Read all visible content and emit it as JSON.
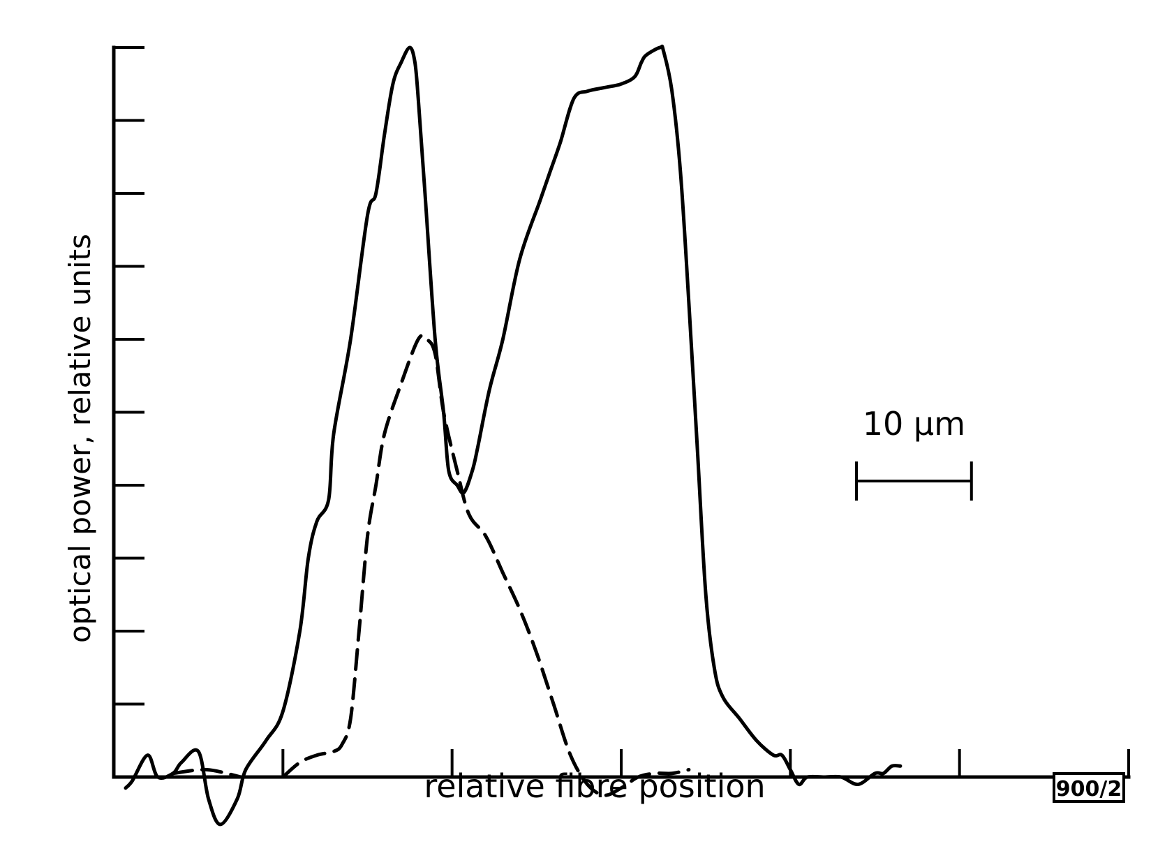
{
  "chart_data": {
    "type": "line",
    "title": "",
    "xlabel": "relative fibre position",
    "ylabel": "optical power, relative units",
    "x_tick_labels": [],
    "y_tick_labels": [],
    "xlim": [
      0,
      60
    ],
    "ylim": [
      -1,
      10
    ],
    "grid": false,
    "legend": "none",
    "scale_bar": {
      "label": "10 µm",
      "length": 10
    },
    "figure_id": "900/2",
    "x_ticks": [
      10,
      20,
      30,
      40,
      50,
      60
    ],
    "y_ticks": [
      1,
      2,
      3,
      4,
      5,
      6,
      7,
      8,
      9,
      10
    ],
    "series": [
      {
        "style": "solid",
        "color": "#000000",
        "points": [
          [
            0.7,
            -0.15
          ],
          [
            1.1,
            -0.05
          ],
          [
            2.0,
            0.3
          ],
          [
            2.6,
            0.0
          ],
          [
            3.5,
            0.05
          ],
          [
            4.0,
            0.2
          ],
          [
            5.0,
            0.35
          ],
          [
            5.6,
            -0.3
          ],
          [
            6.3,
            -0.65
          ],
          [
            7.3,
            -0.3
          ],
          [
            7.8,
            0.1
          ],
          [
            9.0,
            0.5
          ],
          [
            10.0,
            0.9
          ],
          [
            11.0,
            2.0
          ],
          [
            11.5,
            3.0
          ],
          [
            12.0,
            3.5
          ],
          [
            12.7,
            3.8
          ],
          [
            13.0,
            4.7
          ],
          [
            14.0,
            6.0
          ],
          [
            15.0,
            7.7
          ],
          [
            15.5,
            8.0
          ],
          [
            16.0,
            8.8
          ],
          [
            16.5,
            9.5
          ],
          [
            17.0,
            9.8
          ],
          [
            17.5,
            10.0
          ],
          [
            17.8,
            9.8
          ],
          [
            18.0,
            9.3
          ],
          [
            18.4,
            8.0
          ],
          [
            19.0,
            6.0
          ],
          [
            19.5,
            5.0
          ],
          [
            19.8,
            4.2
          ],
          [
            20.3,
            4.0
          ],
          [
            20.7,
            3.9
          ],
          [
            21.2,
            4.2
          ],
          [
            21.5,
            4.5
          ],
          [
            22.2,
            5.3
          ],
          [
            23.0,
            6.0
          ],
          [
            24.0,
            7.1
          ],
          [
            25.2,
            7.9
          ],
          [
            25.8,
            8.3
          ],
          [
            26.4,
            8.7
          ],
          [
            27.2,
            9.3
          ],
          [
            28.0,
            9.4
          ],
          [
            29.0,
            9.45
          ],
          [
            30.0,
            9.5
          ],
          [
            30.8,
            9.6
          ],
          [
            31.2,
            9.8
          ],
          [
            31.5,
            9.9
          ],
          [
            32.3,
            10.0
          ],
          [
            32.5,
            9.95
          ],
          [
            33.0,
            9.4
          ],
          [
            33.5,
            8.3
          ],
          [
            34.0,
            6.5
          ],
          [
            34.5,
            4.5
          ],
          [
            35.0,
            2.5
          ],
          [
            35.5,
            1.5
          ],
          [
            36.0,
            1.1
          ],
          [
            37.0,
            0.8
          ],
          [
            38.0,
            0.5
          ],
          [
            39.0,
            0.3
          ],
          [
            39.5,
            0.3
          ],
          [
            40.0,
            0.1
          ],
          [
            40.5,
            -0.1
          ],
          [
            41.0,
            0.0
          ],
          [
            42.0,
            0.0
          ],
          [
            43.0,
            0.0
          ],
          [
            44.0,
            -0.1
          ],
          [
            45.0,
            0.05
          ],
          [
            45.5,
            0.05
          ],
          [
            46.0,
            0.15
          ],
          [
            46.5,
            0.15
          ]
        ]
      },
      {
        "style": "dashed",
        "color": "#000000",
        "points": [
          [
            10.0,
            0.0
          ],
          [
            11.0,
            0.2
          ],
          [
            12.0,
            0.3
          ],
          [
            13.0,
            0.35
          ],
          [
            13.5,
            0.45
          ],
          [
            14.0,
            0.8
          ],
          [
            14.5,
            2.0
          ],
          [
            15.0,
            3.3
          ],
          [
            15.5,
            4.0
          ],
          [
            16.0,
            4.7
          ],
          [
            17.0,
            5.4
          ],
          [
            18.0,
            6.0
          ],
          [
            18.5,
            6.0
          ],
          [
            19.0,
            5.8
          ],
          [
            19.5,
            5.0
          ],
          [
            20.3,
            4.2
          ],
          [
            21.0,
            3.6
          ],
          [
            22.0,
            3.3
          ],
          [
            23.0,
            2.8
          ],
          [
            24.0,
            2.3
          ],
          [
            25.0,
            1.7
          ],
          [
            26.0,
            1.0
          ],
          [
            27.0,
            0.3
          ],
          [
            28.0,
            -0.1
          ],
          [
            29.0,
            -0.25
          ],
          [
            30.0,
            -0.15
          ],
          [
            31.0,
            0.0
          ],
          [
            32.0,
            0.05
          ],
          [
            33.0,
            0.05
          ],
          [
            34.0,
            0.1
          ]
        ]
      }
    ],
    "baseline_stubs": [
      {
        "style": "dashed",
        "points": [
          [
            3.5,
            0.05
          ],
          [
            5.5,
            0.1
          ],
          [
            7.5,
            0.0
          ]
        ]
      }
    ]
  }
}
